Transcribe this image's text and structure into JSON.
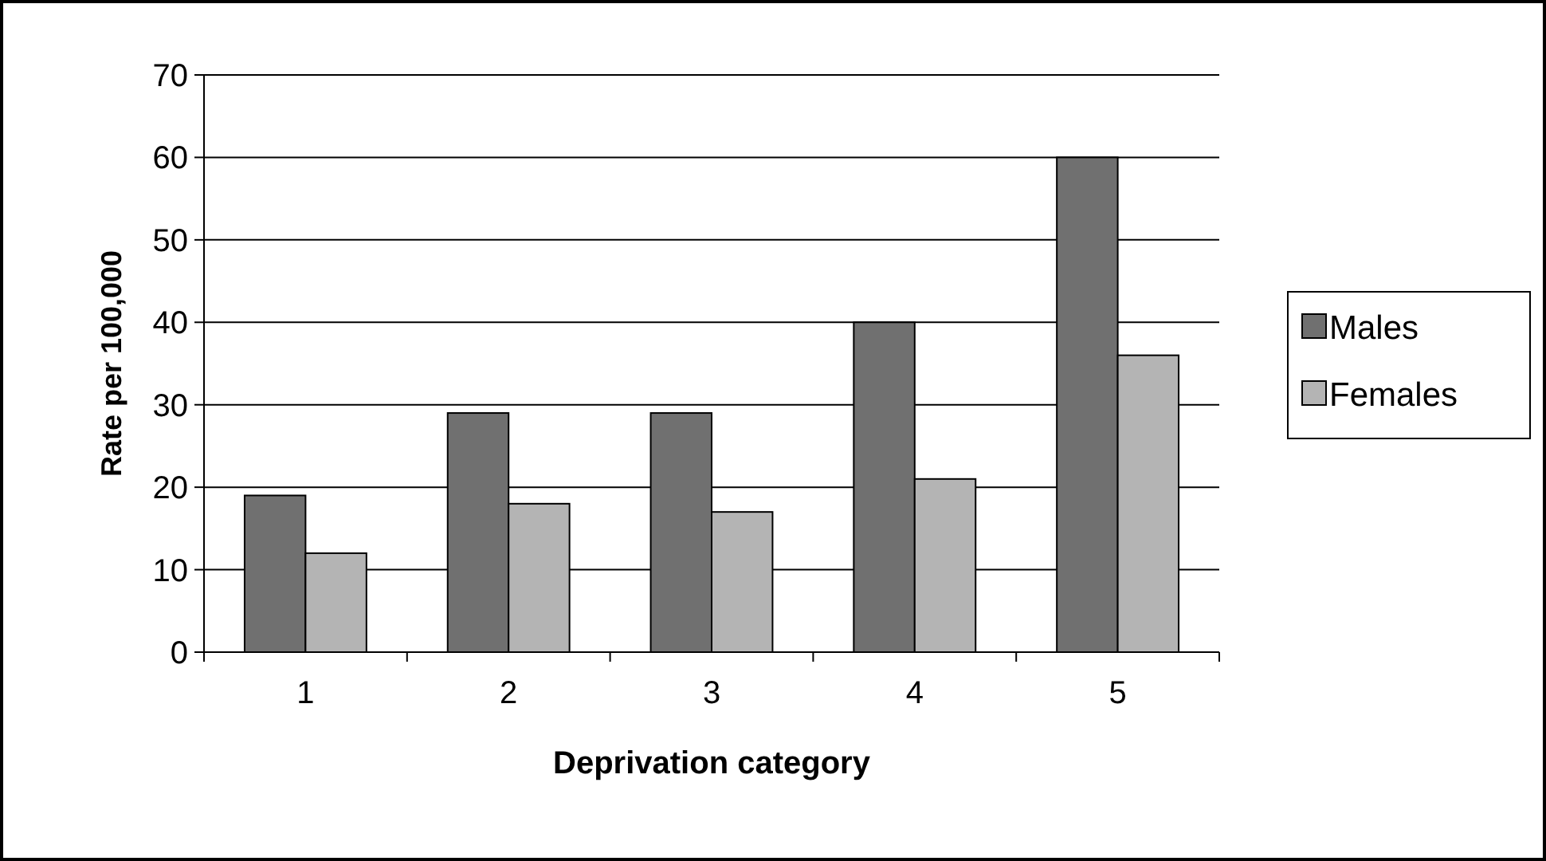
{
  "chart_data": {
    "type": "bar",
    "xlabel": "Deprivation category",
    "ylabel": "Rate per 100,000",
    "categories": [
      "1",
      "2",
      "3",
      "4",
      "5"
    ],
    "series": [
      {
        "name": "Males",
        "color": "#707070",
        "values": [
          19,
          29,
          29,
          40,
          60
        ]
      },
      {
        "name": "Females",
        "color": "#b4b4b4",
        "values": [
          12,
          18,
          17,
          21,
          36
        ]
      }
    ],
    "ylim": [
      0,
      70
    ],
    "yticks": [
      0,
      10,
      20,
      30,
      40,
      50,
      60,
      70
    ],
    "grid": "y",
    "legend": "right"
  }
}
